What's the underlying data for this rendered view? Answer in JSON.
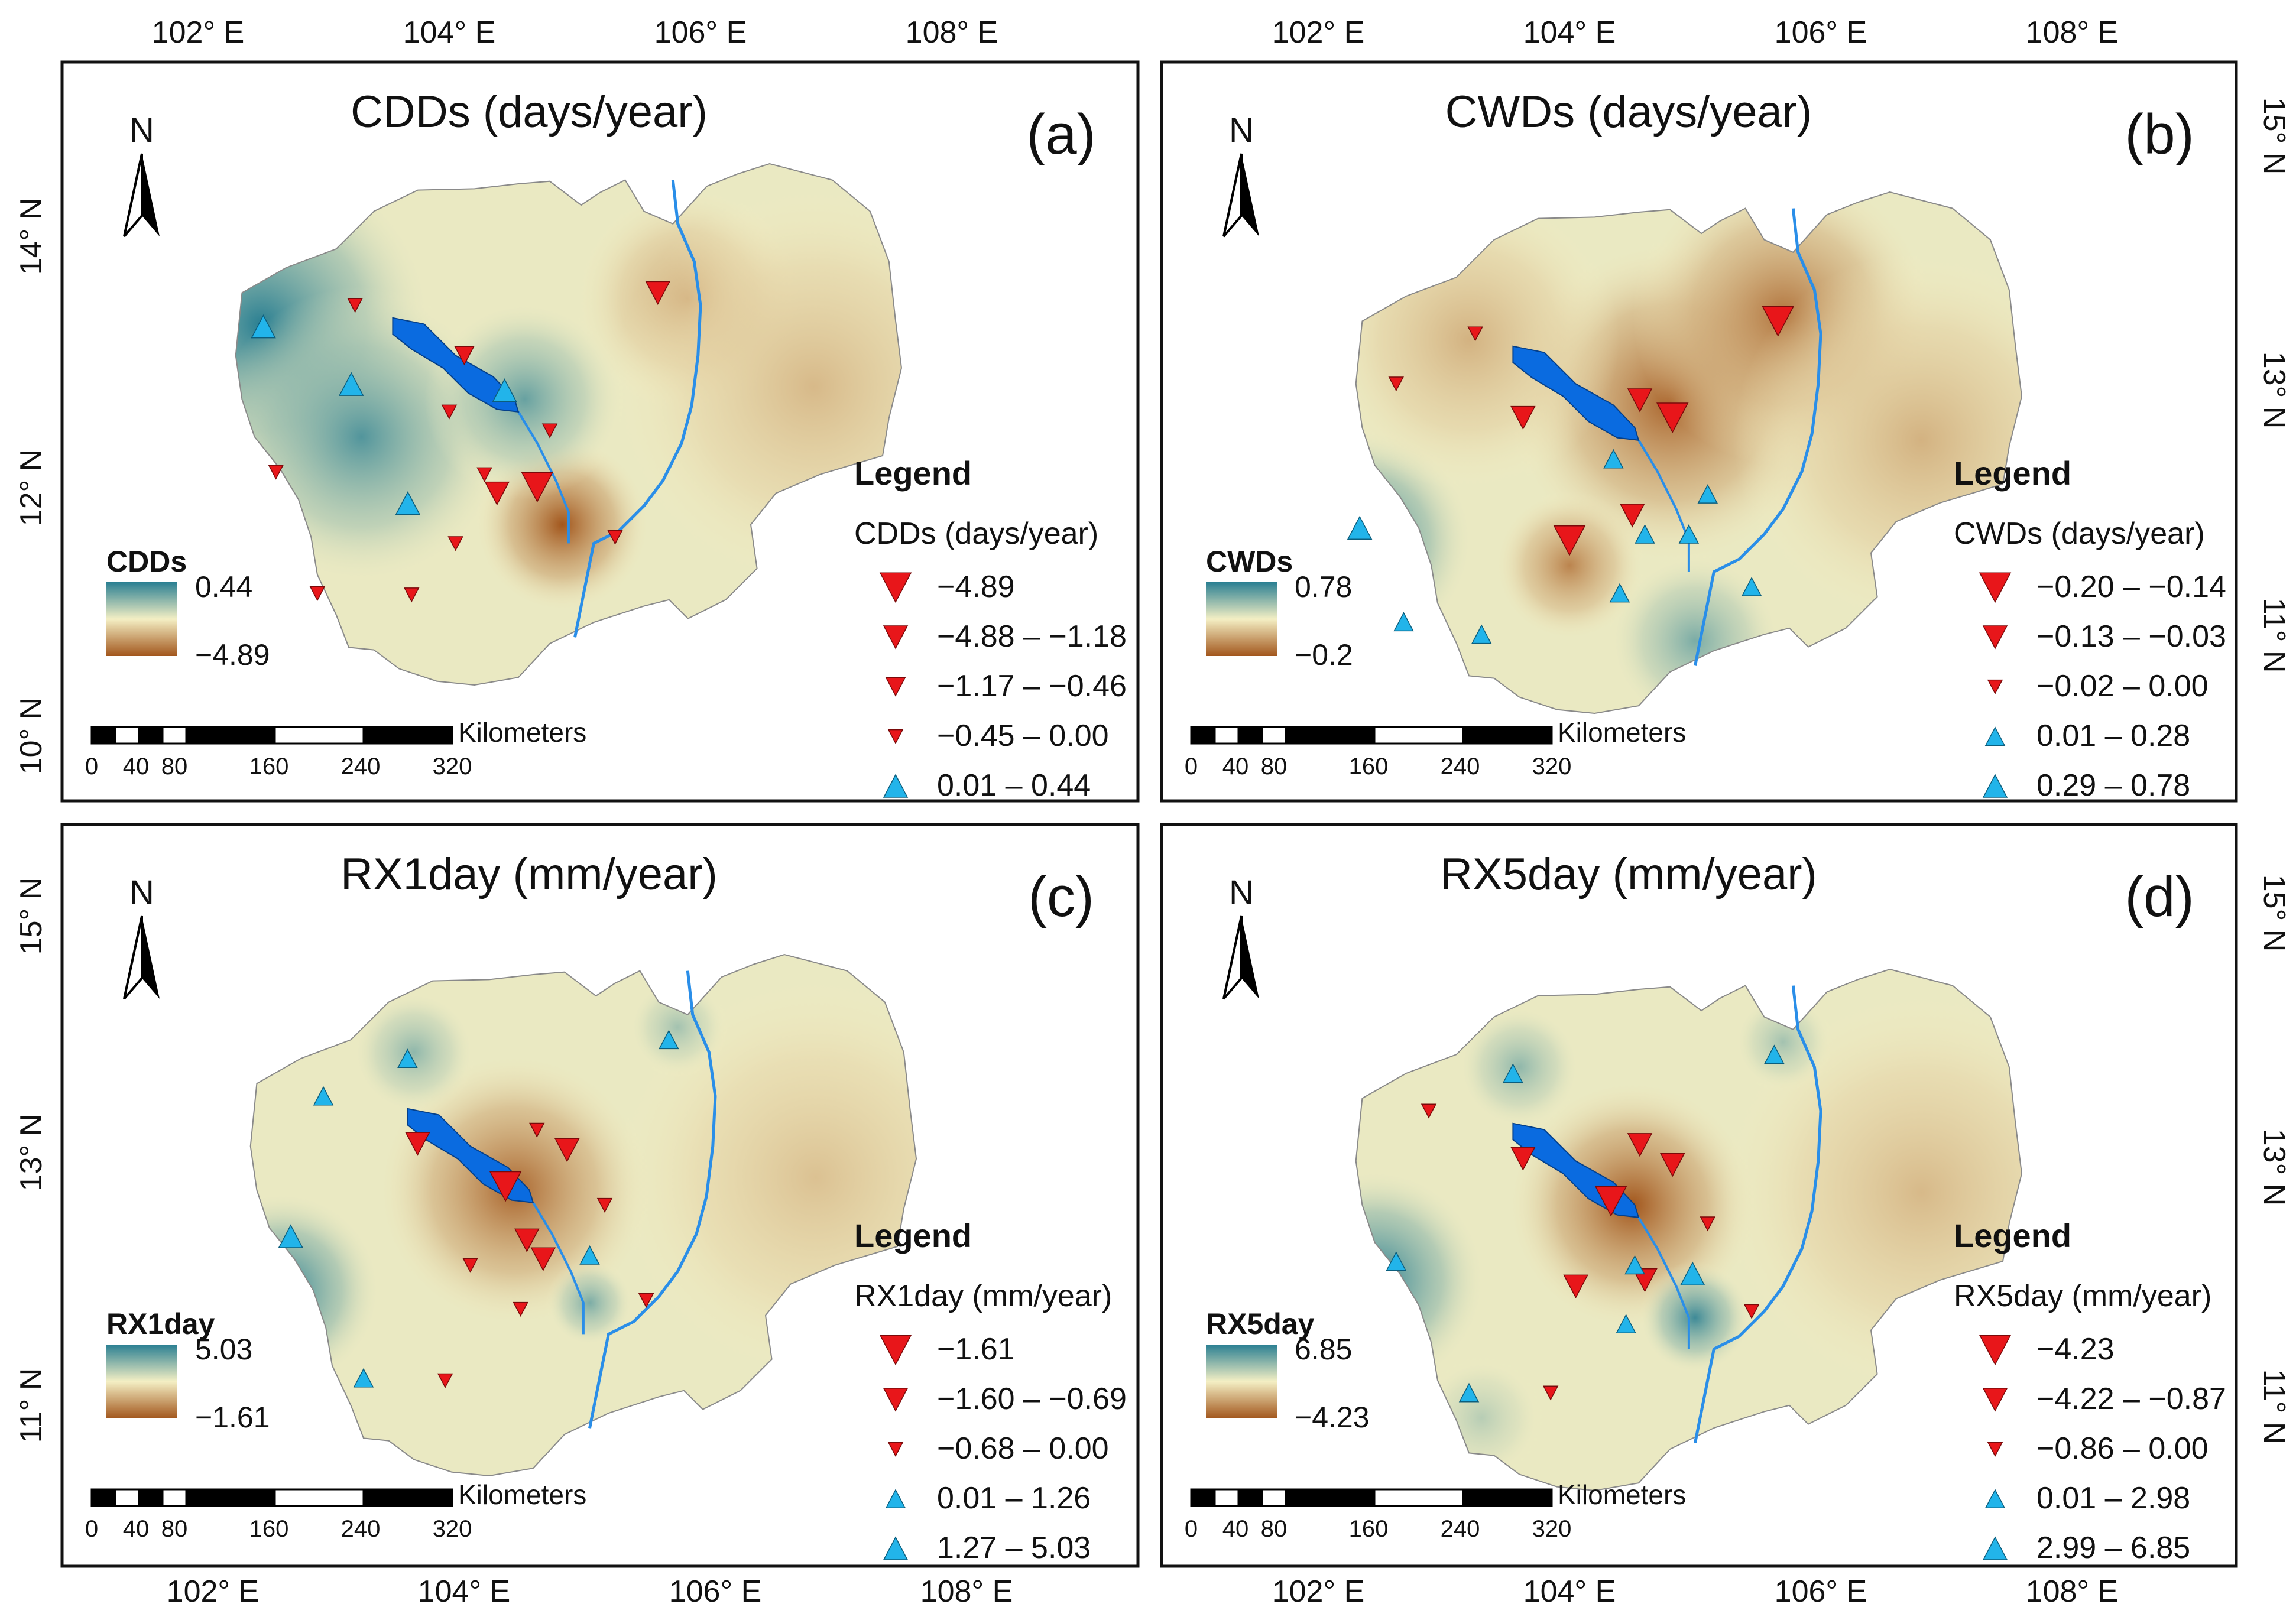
{
  "colors": {
    "trend_down": "#e8161a",
    "trend_up": "#22b4ea",
    "lake": "#0a6be0",
    "river": "#2a8ee8",
    "ramp_high": "#2a7f92",
    "ramp_mid": "#f4efc4",
    "ramp_low": "#a2561c"
  },
  "axes": {
    "lon_top_labels": [
      "102° E",
      "104° E",
      "106° E",
      "108° E"
    ],
    "lon_bottom_labels": [
      "102° E",
      "104° E",
      "106° E",
      "108° E"
    ],
    "lat_left_top": [
      "14° N",
      "12° N",
      "10° N"
    ],
    "lat_left_bottom": [
      "15° N",
      "13° N",
      "11° N"
    ],
    "lat_right_top": [
      "15° N",
      "13° N",
      "11° N"
    ],
    "lat_right_bottom": [
      "15° N",
      "13° N",
      "11° N"
    ]
  },
  "common": {
    "north_label": "N",
    "legend_heading": "Legend",
    "scale_unit": "Kilometers",
    "scale_ticks": [
      "0",
      "40",
      "80",
      "160",
      "240",
      "320"
    ]
  },
  "panels": [
    {
      "id": "a",
      "label": "(a)",
      "title": "CDDs (days/year)",
      "legend_sub": "CDDs (days/year)",
      "ramp_name": "CDDs",
      "ramp_max": "0.44",
      "ramp_min": "−4.89",
      "classes": [
        {
          "label": "−4.89",
          "dir": "down",
          "size": 5
        },
        {
          "label": "−4.88 – −1.18",
          "dir": "down",
          "size": 4
        },
        {
          "label": "−1.17 – −0.46",
          "dir": "down",
          "size": 3
        },
        {
          "label": "−0.45 – 0.00",
          "dir": "down",
          "size": 2
        },
        {
          "label": "0.01 – 0.44",
          "dir": "up",
          "size": 4
        }
      ],
      "stations": [
        {
          "lon": 105.66,
          "lat": 13.55,
          "cls": 1
        },
        {
          "lon": 104.7,
          "lat": 12.0,
          "cls": 0
        },
        {
          "lon": 104.38,
          "lat": 11.95,
          "cls": 1
        },
        {
          "lon": 103.25,
          "lat": 13.45,
          "cls": 3
        },
        {
          "lon": 104.12,
          "lat": 13.05,
          "cls": 2
        },
        {
          "lon": 104.0,
          "lat": 12.6,
          "cls": 3
        },
        {
          "lon": 104.8,
          "lat": 12.45,
          "cls": 3
        },
        {
          "lon": 104.28,
          "lat": 12.1,
          "cls": 3
        },
        {
          "lon": 104.05,
          "lat": 11.55,
          "cls": 3
        },
        {
          "lon": 105.32,
          "lat": 11.6,
          "cls": 3
        },
        {
          "lon": 102.62,
          "lat": 12.12,
          "cls": 3
        },
        {
          "lon": 102.95,
          "lat": 11.15,
          "cls": 3
        },
        {
          "lon": 103.7,
          "lat": 11.14,
          "cls": 3
        },
        {
          "lon": 102.52,
          "lat": 13.28,
          "cls": 4
        },
        {
          "lon": 103.22,
          "lat": 12.82,
          "cls": 4
        },
        {
          "lon": 104.44,
          "lat": 12.77,
          "cls": 4
        },
        {
          "lon": 103.67,
          "lat": 11.87,
          "cls": 4
        }
      ]
    },
    {
      "id": "b",
      "label": "(b)",
      "title": "CWDs (days/year)",
      "legend_sub": "CWDs (days/year)",
      "ramp_name": "CWDs",
      "ramp_max": "0.78",
      "ramp_min": "−0.2",
      "classes": [
        {
          "label": "−0.20 – −0.14",
          "dir": "down",
          "size": 5
        },
        {
          "label": "−0.13 – −0.03",
          "dir": "down",
          "size": 4
        },
        {
          "label": "−0.02 – 0.00",
          "dir": "down",
          "size": 2
        },
        {
          "label": "0.01 – 0.28",
          "dir": "up",
          "size": 3
        },
        {
          "label": "0.29 – 0.78",
          "dir": "up",
          "size": 4
        }
      ],
      "stations": [
        {
          "lon": 105.66,
          "lat": 13.55,
          "cls": 0
        },
        {
          "lon": 104.82,
          "lat": 12.78,
          "cls": 0
        },
        {
          "lon": 104.0,
          "lat": 11.8,
          "cls": 0
        },
        {
          "lon": 104.56,
          "lat": 12.92,
          "cls": 1
        },
        {
          "lon": 103.63,
          "lat": 12.78,
          "cls": 1
        },
        {
          "lon": 104.5,
          "lat": 12.0,
          "cls": 1
        },
        {
          "lon": 103.25,
          "lat": 13.45,
          "cls": 2
        },
        {
          "lon": 102.62,
          "lat": 13.05,
          "cls": 2
        },
        {
          "lon": 104.35,
          "lat": 12.45,
          "cls": 3
        },
        {
          "lon": 105.1,
          "lat": 12.17,
          "cls": 3
        },
        {
          "lon": 104.6,
          "lat": 11.85,
          "cls": 3
        },
        {
          "lon": 104.95,
          "lat": 11.85,
          "cls": 3
        },
        {
          "lon": 104.4,
          "lat": 11.38,
          "cls": 3
        },
        {
          "lon": 105.45,
          "lat": 11.43,
          "cls": 3
        },
        {
          "lon": 102.68,
          "lat": 11.15,
          "cls": 3
        },
        {
          "lon": 103.3,
          "lat": 11.05,
          "cls": 3
        },
        {
          "lon": 102.33,
          "lat": 11.9,
          "cls": 4
        }
      ]
    },
    {
      "id": "c",
      "label": "(c)",
      "title": "RX1day (mm/year)",
      "legend_sub": "RX1day (mm/year)",
      "ramp_name": "RX1day",
      "ramp_max": "5.03",
      "ramp_min": "−1.61",
      "classes": [
        {
          "label": "−1.61",
          "dir": "down",
          "size": 5
        },
        {
          "label": "−1.60 – −0.69",
          "dir": "down",
          "size": 4
        },
        {
          "label": "−0.68 – 0.00",
          "dir": "down",
          "size": 2
        },
        {
          "label": "0.01 – 1.26",
          "dir": "up",
          "size": 3
        },
        {
          "label": "1.27 – 5.03",
          "dir": "up",
          "size": 4
        }
      ],
      "stations": [
        {
          "lon": 104.33,
          "lat": 12.73,
          "cls": 0
        },
        {
          "lon": 104.82,
          "lat": 13.02,
          "cls": 1
        },
        {
          "lon": 103.63,
          "lat": 13.07,
          "cls": 1
        },
        {
          "lon": 104.5,
          "lat": 12.3,
          "cls": 1
        },
        {
          "lon": 104.63,
          "lat": 12.15,
          "cls": 1
        },
        {
          "lon": 104.58,
          "lat": 13.18,
          "cls": 2
        },
        {
          "lon": 105.12,
          "lat": 12.58,
          "cls": 2
        },
        {
          "lon": 104.05,
          "lat": 12.1,
          "cls": 2
        },
        {
          "lon": 104.45,
          "lat": 11.75,
          "cls": 2
        },
        {
          "lon": 105.45,
          "lat": 11.82,
          "cls": 2
        },
        {
          "lon": 103.85,
          "lat": 11.18,
          "cls": 2
        },
        {
          "lon": 103.55,
          "lat": 13.75,
          "cls": 3
        },
        {
          "lon": 102.88,
          "lat": 13.45,
          "cls": 3
        },
        {
          "lon": 105.63,
          "lat": 13.9,
          "cls": 3
        },
        {
          "lon": 105.0,
          "lat": 12.18,
          "cls": 3
        },
        {
          "lon": 103.2,
          "lat": 11.2,
          "cls": 3
        },
        {
          "lon": 102.62,
          "lat": 12.33,
          "cls": 4
        }
      ]
    },
    {
      "id": "d",
      "label": "(d)",
      "title": "RX5day (mm/year)",
      "legend_sub": "RX5day (mm/year)",
      "ramp_name": "RX5day",
      "ramp_max": "6.85",
      "ramp_min": "−4.23",
      "classes": [
        {
          "label": "−4.23",
          "dir": "down",
          "size": 5
        },
        {
          "label": "−4.22 – −0.87",
          "dir": "down",
          "size": 4
        },
        {
          "label": "−0.86 – 0.00",
          "dir": "down",
          "size": 2
        },
        {
          "label": "0.01 – 2.98",
          "dir": "up",
          "size": 3
        },
        {
          "label": "2.99 – 6.85",
          "dir": "up",
          "size": 4
        }
      ],
      "stations": [
        {
          "lon": 104.33,
          "lat": 12.73,
          "cls": 0
        },
        {
          "lon": 104.56,
          "lat": 13.18,
          "cls": 1
        },
        {
          "lon": 104.82,
          "lat": 13.02,
          "cls": 1
        },
        {
          "lon": 103.63,
          "lat": 13.07,
          "cls": 1
        },
        {
          "lon": 104.05,
          "lat": 12.05,
          "cls": 1
        },
        {
          "lon": 104.6,
          "lat": 12.1,
          "cls": 1
        },
        {
          "lon": 105.1,
          "lat": 12.55,
          "cls": 2
        },
        {
          "lon": 102.88,
          "lat": 13.45,
          "cls": 2
        },
        {
          "lon": 105.45,
          "lat": 11.85,
          "cls": 2
        },
        {
          "lon": 103.85,
          "lat": 11.2,
          "cls": 2
        },
        {
          "lon": 103.55,
          "lat": 13.75,
          "cls": 3
        },
        {
          "lon": 105.63,
          "lat": 13.9,
          "cls": 3
        },
        {
          "lon": 104.52,
          "lat": 12.22,
          "cls": 3
        },
        {
          "lon": 104.45,
          "lat": 11.75,
          "cls": 3
        },
        {
          "lon": 103.2,
          "lat": 11.2,
          "cls": 3
        },
        {
          "lon": 102.62,
          "lat": 12.25,
          "cls": 3
        },
        {
          "lon": 104.98,
          "lat": 12.15,
          "cls": 4
        }
      ]
    }
  ]
}
